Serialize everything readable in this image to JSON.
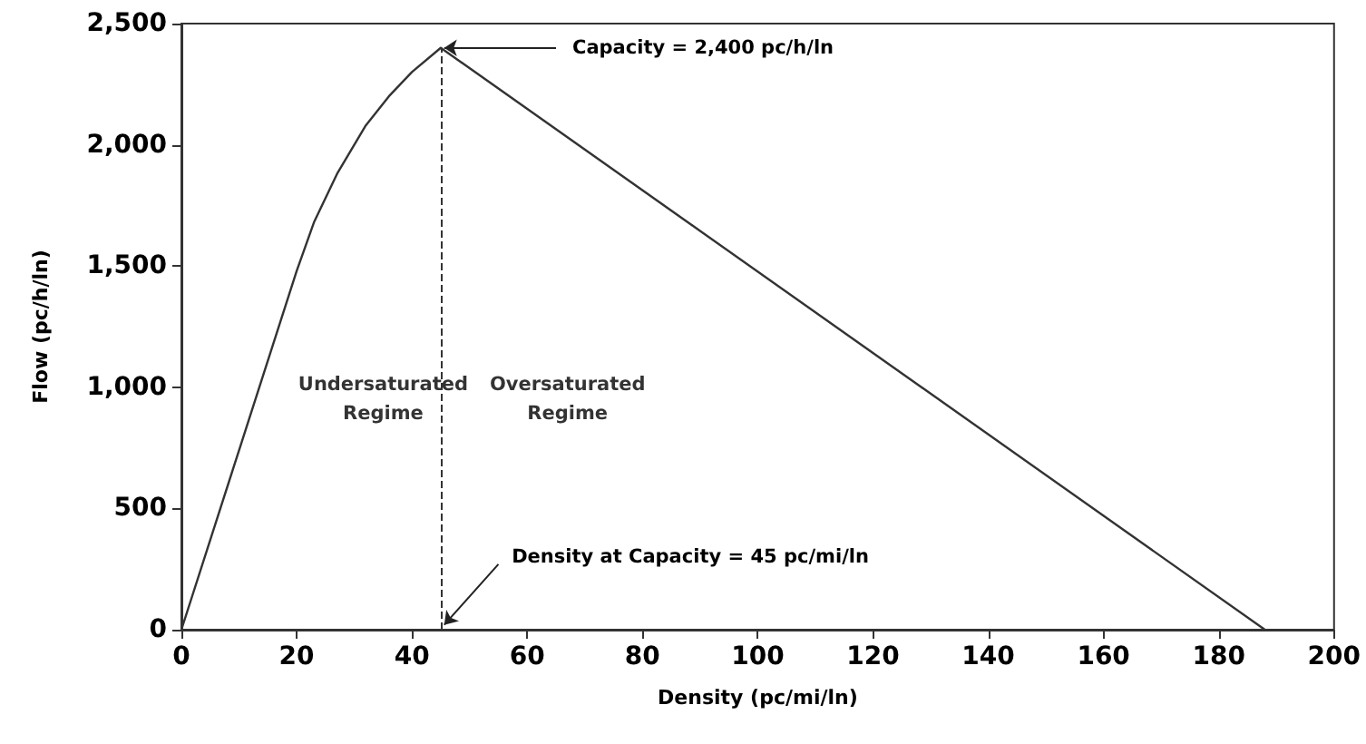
{
  "chart_data": {
    "type": "line",
    "xlabel": "Density (pc/mi/ln)",
    "ylabel": "Flow (pc/h/ln)",
    "x": [
      0,
      10,
      20,
      23,
      27,
      32,
      36,
      40,
      45,
      188
    ],
    "series": [
      {
        "color": "#333333",
        "values": [
          0,
          740,
          1480,
          1680,
          1880,
          2080,
          2200,
          2300,
          2400,
          0
        ]
      }
    ],
    "xlim": [
      0,
      200
    ],
    "xticks": [
      0,
      20,
      40,
      60,
      80,
      100,
      120,
      140,
      160,
      180,
      200
    ],
    "ylim": [
      0,
      2500
    ],
    "yticks": [
      0,
      500,
      {
        "value": 1000,
        "label": "1,000"
      },
      {
        "value": 1500,
        "label": "1,500"
      },
      {
        "value": 2000,
        "label": "2,000"
      },
      {
        "value": 2500,
        "label": "2,500"
      }
    ],
    "grid": false,
    "marker": "none",
    "line_style": "solid",
    "ref_lines": [
      {
        "axis": "x",
        "value": 45,
        "color": "#333333",
        "line_style": "dashed"
      }
    ],
    "annotations": [
      {
        "text": "Capacity = 2,400 pc/h/ln",
        "x": 45,
        "y": 2400
      },
      {
        "text": "Density at Capacity = 45 pc/mi/ln",
        "x": 45,
        "y": 0
      },
      "Undersaturated\nRegime",
      "Oversaturated\nRegime"
    ]
  }
}
